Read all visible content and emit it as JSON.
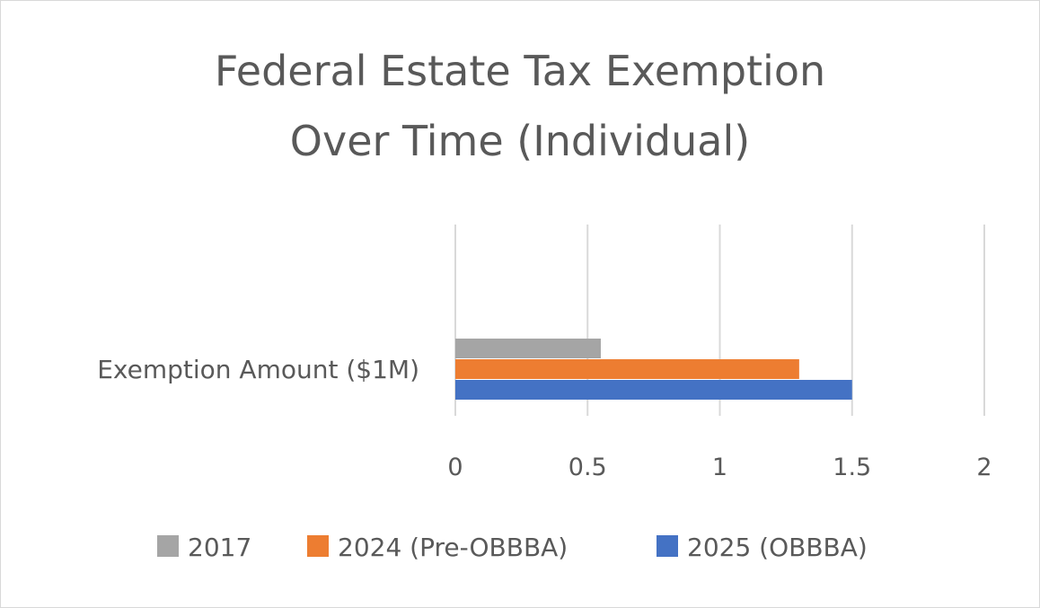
{
  "chart_data": {
    "type": "bar",
    "orientation": "horizontal",
    "title": "Federal Estate Tax Exemption Over Time (Individual)",
    "title_lines": [
      "Federal Estate Tax Exemption",
      "Over Time (Individual)"
    ],
    "categories": [
      "Exemption Amount ($1M)"
    ],
    "series": [
      {
        "name": "2017",
        "values": [
          0.55
        ],
        "color": "#a5a5a5"
      },
      {
        "name": "2024 (Pre-OBBBA)",
        "values": [
          1.3
        ],
        "color": "#ed7d31"
      },
      {
        "name": "2025 (OBBBA)",
        "values": [
          1.5
        ],
        "color": "#4472c4"
      }
    ],
    "xlim": [
      0,
      2
    ],
    "xticks": [
      0,
      0.5,
      1,
      1.5,
      2
    ],
    "xtick_labels": [
      "0",
      "0.5",
      "1",
      "1.5",
      "2"
    ],
    "grid": true,
    "legend_position": "bottom"
  }
}
